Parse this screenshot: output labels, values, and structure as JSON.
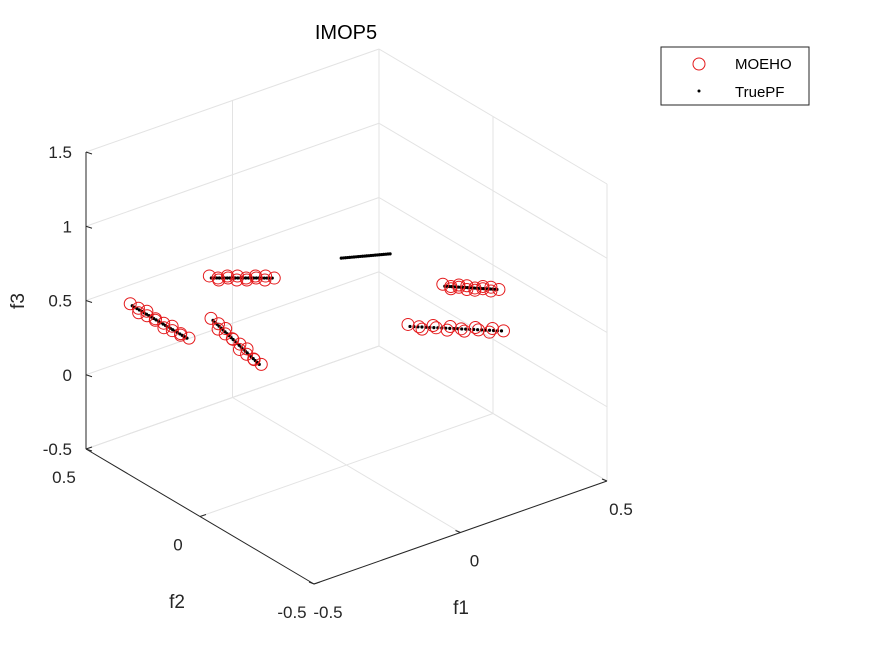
{
  "chart_data": {
    "type": "scatter",
    "title": "IMOP5",
    "xlabel": "f1",
    "ylabel": "f2",
    "zlabel": "f3",
    "xlim": [
      -0.5,
      0.5
    ],
    "ylim": [
      -0.5,
      0.5
    ],
    "zlim": [
      -0.5,
      1.5
    ],
    "xticks": [
      "-0.5",
      "0",
      "0.5"
    ],
    "yticks": [
      "-0.5",
      "0",
      "0.5"
    ],
    "zticks": [
      "-0.5",
      "0",
      "0.5",
      "1",
      "1.5"
    ],
    "grid": true,
    "legend_position": "top-right",
    "series": [
      {
        "name": "MOEHO",
        "marker": "circle",
        "color": "#e41a1c",
        "clusters": [
          {
            "x": [
              -0.42,
              -0.42
            ],
            "y": [
              0.4,
              0.16
            ],
            "z": 0.5
          },
          {
            "x": [
              -0.3,
              -0.36
            ],
            "y": [
              0.2,
              -0.08
            ],
            "z": 0.5
          },
          {
            "x": [
              -0.15,
              -0.02
            ],
            "y": [
              0.4,
              0.3
            ],
            "z": 0.5
          },
          {
            "x": [
              0.1,
              0.28
            ],
            "y": [
              -0.15,
              -0.32
            ],
            "z": 0.5
          },
          {
            "x": [
              0.32,
              0.42
            ],
            "y": [
              -0.02,
              -0.12
            ],
            "z": 0.5
          }
        ]
      },
      {
        "name": "TruePF",
        "marker": "dot",
        "color": "#000000",
        "clusters": [
          {
            "x": [
              -0.42,
              -0.42
            ],
            "y": [
              0.4,
              0.16
            ],
            "z": 0.5
          },
          {
            "x": [
              -0.3,
              -0.36
            ],
            "y": [
              0.2,
              -0.08
            ],
            "z": 0.5
          },
          {
            "x": [
              -0.15,
              -0.02
            ],
            "y": [
              0.4,
              0.3
            ],
            "z": 0.5
          },
          {
            "x": [
              0.1,
              0.28
            ],
            "y": [
              -0.15,
              -0.32
            ],
            "z": 0.5
          },
          {
            "x": [
              0.32,
              0.42
            ],
            "y": [
              -0.02,
              -0.12
            ],
            "z": 0.5
          },
          {
            "x": [
              0.2,
              0.32
            ],
            "y": [
              0.28,
              0.22
            ],
            "z": 0.5
          }
        ]
      }
    ]
  }
}
